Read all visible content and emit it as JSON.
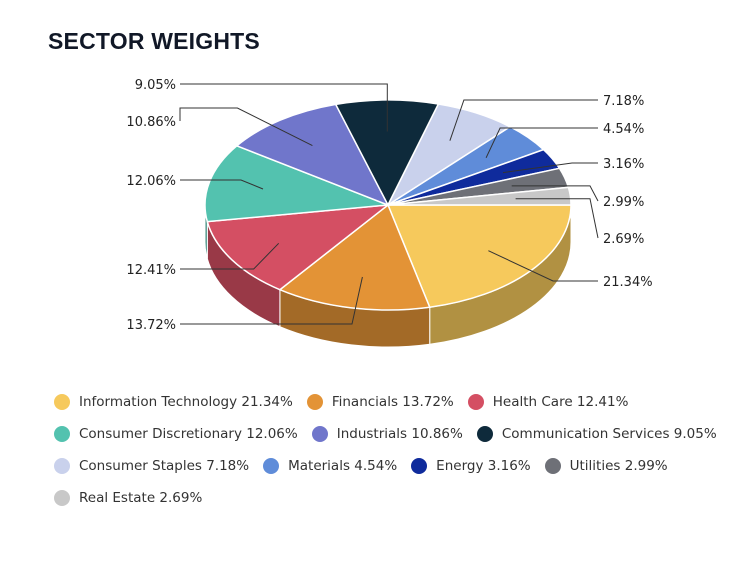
{
  "title": "SECTOR WEIGHTS",
  "chart_data": {
    "type": "pie",
    "title": "SECTOR WEIGHTS",
    "style": "3d",
    "unit": "%",
    "slices": [
      {
        "name": "Information Technology",
        "value": 21.34,
        "label": "21.34%",
        "color": "#F6C95C"
      },
      {
        "name": "Financials",
        "value": 13.72,
        "label": "13.72%",
        "color": "#E39336"
      },
      {
        "name": "Health Care",
        "value": 12.41,
        "label": "12.41%",
        "color": "#D44F63"
      },
      {
        "name": "Consumer Discretionary",
        "value": 12.06,
        "label": "12.06%",
        "color": "#53C2AF"
      },
      {
        "name": "Industrials",
        "value": 10.86,
        "label": "10.86%",
        "color": "#7076CB"
      },
      {
        "name": "Communication Services",
        "value": 9.05,
        "label": "9.05%",
        "color": "#0E2A3B"
      },
      {
        "name": "Consumer Staples",
        "value": 7.18,
        "label": "7.18%",
        "color": "#C9D1EC"
      },
      {
        "name": "Materials",
        "value": 4.54,
        "label": "4.54%",
        "color": "#5F8CD9"
      },
      {
        "name": "Energy",
        "value": 3.16,
        "label": "3.16%",
        "color": "#0F2B9C"
      },
      {
        "name": "Utilities",
        "value": 2.99,
        "label": "2.99%",
        "color": "#6E7077"
      },
      {
        "name": "Real Estate",
        "value": 2.69,
        "label": "2.69%",
        "color": "#C8C8C8"
      }
    ],
    "legend": {
      "rows": [
        [
          {
            "text": "Information Technology 21.34%",
            "color": "#F6C95C"
          },
          {
            "text": "Financials 13.72%",
            "color": "#E39336"
          },
          {
            "text": "Health Care 12.41%",
            "color": "#D44F63"
          }
        ],
        [
          {
            "text": "Consumer Discretionary 12.06%",
            "color": "#53C2AF"
          },
          {
            "text": "Industrials 10.86%",
            "color": "#7076CB"
          },
          {
            "text": "Communication Services 9.05%",
            "color": "#0E2A3B"
          }
        ],
        [
          {
            "text": "Consumer Staples 7.18%",
            "color": "#C9D1EC"
          },
          {
            "text": "Materials 4.54%",
            "color": "#5F8CD9"
          },
          {
            "text": "Energy 3.16%",
            "color": "#0F2B9C"
          },
          {
            "text": "Utilities 2.99%",
            "color": "#6E7077"
          }
        ],
        [
          {
            "text": "Real Estate 2.69%",
            "color": "#C8C8C8"
          }
        ]
      ]
    }
  }
}
